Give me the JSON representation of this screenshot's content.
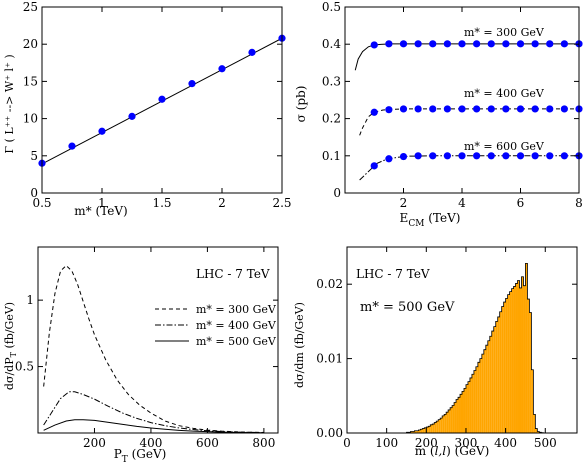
{
  "chart_data": [
    {
      "type": "line",
      "ylabel": "Γ ( L⁺⁺ --> W⁺ l⁺ )",
      "xlabel": "m* (TeV)",
      "xlim": [
        0.5,
        2.5
      ],
      "ylim": [
        0,
        25
      ],
      "x_ticks": [
        "0.5",
        "1",
        "1.5",
        "2",
        "2.5"
      ],
      "y_ticks": [
        "0",
        "5",
        "10",
        "15",
        "20",
        "25"
      ],
      "series": [
        {
          "style": "solid",
          "x": [
            0.5,
            2.5
          ],
          "y": [
            3.9,
            20.8
          ]
        },
        {
          "style": "markers",
          "marker_color": "#0000ff",
          "x": [
            0.5,
            0.75,
            1.0,
            1.25,
            1.5,
            1.75,
            2.0,
            2.25,
            2.5
          ],
          "y": [
            4.0,
            6.3,
            8.3,
            10.3,
            12.6,
            14.7,
            16.7,
            18.9,
            20.8
          ]
        }
      ]
    },
    {
      "type": "line",
      "ylabel": "σ  (pb)",
      "xlabel": "E CM  (TeV)",
      "xlim": [
        0,
        8
      ],
      "ylim": [
        0,
        0.5
      ],
      "x_ticks": [
        "2",
        "4",
        "6",
        "8"
      ],
      "y_ticks": [
        "0",
        "0.1",
        "0.2",
        "0.3",
        "0.4",
        "0.5"
      ],
      "annotations": [
        "m* = 300 GeV",
        "m* = 400 GeV",
        "m* = 600 GeV"
      ],
      "series": [
        {
          "style": "solid",
          "x": [
            0.35,
            0.45,
            0.6,
            0.8,
            1.0,
            1.3,
            1.6,
            2.0,
            3,
            4,
            5,
            6,
            7,
            8
          ],
          "y": [
            0.33,
            0.36,
            0.38,
            0.393,
            0.398,
            0.4,
            0.401,
            0.401,
            0.401,
            0.401,
            0.401,
            0.401,
            0.401,
            0.401
          ]
        },
        {
          "style": "markers",
          "marker_color": "#0000ff",
          "x": [
            1.0,
            1.5,
            2.0,
            2.5,
            3.0,
            3.5,
            4.0,
            4.5,
            5.0,
            5.5,
            6.0,
            6.5,
            7.0,
            7.5,
            8.0
          ],
          "y": [
            0.398,
            0.401,
            0.401,
            0.401,
            0.401,
            0.401,
            0.401,
            0.401,
            0.401,
            0.401,
            0.401,
            0.401,
            0.401,
            0.401,
            0.401
          ]
        },
        {
          "style": "dashed",
          "x": [
            0.5,
            0.6,
            0.8,
            1.0,
            1.3,
            1.6,
            2.0,
            3,
            4,
            5,
            6,
            7,
            8
          ],
          "y": [
            0.155,
            0.175,
            0.205,
            0.217,
            0.223,
            0.225,
            0.226,
            0.226,
            0.226,
            0.226,
            0.226,
            0.226,
            0.226
          ]
        },
        {
          "style": "markers",
          "marker_color": "#0000ff",
          "x": [
            1.0,
            1.5,
            2.0,
            2.5,
            3.0,
            3.5,
            4.0,
            4.5,
            5.0,
            5.5,
            6.0,
            6.5,
            7.0,
            7.5,
            8.0
          ],
          "y": [
            0.217,
            0.224,
            0.226,
            0.226,
            0.226,
            0.226,
            0.226,
            0.226,
            0.226,
            0.226,
            0.226,
            0.226,
            0.226,
            0.226,
            0.226
          ]
        },
        {
          "style": "dashdot",
          "x": [
            0.5,
            0.7,
            0.9,
            1.1,
            1.4,
            1.8,
            2.2,
            3,
            4,
            5,
            6,
            7,
            8
          ],
          "y": [
            0.035,
            0.05,
            0.065,
            0.08,
            0.09,
            0.096,
            0.099,
            0.1,
            0.1,
            0.1,
            0.1,
            0.1,
            0.1
          ]
        },
        {
          "style": "markers",
          "marker_color": "#0000ff",
          "x": [
            1.0,
            1.5,
            2.0,
            2.5,
            3.0,
            3.5,
            4.0,
            4.5,
            5.0,
            5.5,
            6.0,
            6.5,
            7.0,
            7.5,
            8.0
          ],
          "y": [
            0.073,
            0.092,
            0.098,
            0.1,
            0.1,
            0.1,
            0.1,
            0.1,
            0.1,
            0.1,
            0.1,
            0.1,
            0.1,
            0.1,
            0.1
          ]
        }
      ]
    },
    {
      "type": "line",
      "ylabel": "dσ/dP T  (fb/GeV)",
      "xlabel": "P T  (GeV)",
      "xlim": [
        0,
        850
      ],
      "ylim": [
        0,
        1.4
      ],
      "x_ticks": [
        "200",
        "400",
        "600",
        "800"
      ],
      "y_ticks": [
        "0.5",
        "1"
      ],
      "annotation": "LHC - 7 TeV",
      "legend_position": "upper-right",
      "series": [
        {
          "name": "m* = 300 GeV",
          "style": "dashed",
          "x": [
            20,
            40,
            60,
            80,
            100,
            120,
            140,
            160,
            180,
            200,
            240,
            280,
            320,
            360,
            400,
            450,
            500,
            550,
            600,
            650,
            700,
            750,
            800
          ],
          "y": [
            0.35,
            0.75,
            1.05,
            1.22,
            1.26,
            1.22,
            1.12,
            0.99,
            0.86,
            0.74,
            0.55,
            0.4,
            0.29,
            0.21,
            0.15,
            0.09,
            0.055,
            0.035,
            0.022,
            0.014,
            0.009,
            0.006,
            0.004
          ]
        },
        {
          "name": "m* = 400 GeV",
          "style": "dashdot",
          "x": [
            20,
            50,
            80,
            110,
            130,
            160,
            200,
            250,
            300,
            350,
            400,
            450,
            500,
            550,
            600,
            650,
            700,
            750,
            800
          ],
          "y": [
            0.06,
            0.16,
            0.26,
            0.31,
            0.31,
            0.29,
            0.255,
            0.2,
            0.15,
            0.11,
            0.078,
            0.055,
            0.038,
            0.026,
            0.017,
            0.011,
            0.007,
            0.005,
            0.003
          ]
        },
        {
          "name": "m* = 500 GeV",
          "style": "solid",
          "x": [
            20,
            60,
            100,
            130,
            160,
            200,
            250,
            300,
            350,
            400,
            450,
            500,
            550,
            600,
            650,
            700,
            750,
            800
          ],
          "y": [
            0.02,
            0.06,
            0.09,
            0.1,
            0.1,
            0.095,
            0.08,
            0.065,
            0.05,
            0.038,
            0.028,
            0.02,
            0.014,
            0.01,
            0.007,
            0.005,
            0.003,
            0.002
          ]
        }
      ]
    },
    {
      "type": "bar",
      "ylabel": "dσ/dm (fb/GeV)",
      "xlabel": "m (l,l)  (GeV)",
      "xlim": [
        0,
        580
      ],
      "ylim": [
        0,
        0.025
      ],
      "x_ticks": [
        "0",
        "100",
        "200",
        "300",
        "400",
        "500"
      ],
      "y_ticks": [
        "0.00",
        "0.01",
        "0.02"
      ],
      "annotations": [
        "LHC - 7 TeV",
        "m* = 500 GeV"
      ],
      "bar_color": "#ffa500",
      "bin_width": 5,
      "x": [
        150,
        155,
        160,
        165,
        170,
        175,
        180,
        185,
        190,
        195,
        200,
        205,
        210,
        215,
        220,
        225,
        230,
        235,
        240,
        245,
        250,
        255,
        260,
        265,
        270,
        275,
        280,
        285,
        290,
        295,
        300,
        305,
        310,
        315,
        320,
        325,
        330,
        335,
        340,
        345,
        350,
        355,
        360,
        365,
        370,
        375,
        380,
        385,
        390,
        395,
        400,
        405,
        410,
        415,
        420,
        425,
        430,
        435,
        440,
        445,
        450,
        455,
        460,
        465,
        470,
        475,
        480,
        485,
        490,
        495
      ],
      "values": [
        0.0001,
        0.0001,
        0.0002,
        0.0002,
        0.0003,
        0.0003,
        0.0004,
        0.0005,
        0.0006,
        0.0007,
        0.0008,
        0.0009,
        0.0011,
        0.0012,
        0.0014,
        0.0016,
        0.0018,
        0.002,
        0.0023,
        0.0025,
        0.0028,
        0.0031,
        0.0034,
        0.0037,
        0.0041,
        0.0045,
        0.0048,
        0.0052,
        0.0056,
        0.006,
        0.0065,
        0.0069,
        0.0074,
        0.0079,
        0.0084,
        0.0089,
        0.0095,
        0.01,
        0.0106,
        0.0112,
        0.0118,
        0.0124,
        0.013,
        0.0137,
        0.0143,
        0.015,
        0.0156,
        0.0163,
        0.017,
        0.0176,
        0.0181,
        0.0186,
        0.019,
        0.0194,
        0.0197,
        0.0201,
        0.0205,
        0.0195,
        0.021,
        0.0198,
        0.0228,
        0.018,
        0.0162,
        0.0085,
        0.0025,
        0.0006,
        0.0002,
        0.0001,
        5e-05,
        2e-05
      ]
    }
  ]
}
